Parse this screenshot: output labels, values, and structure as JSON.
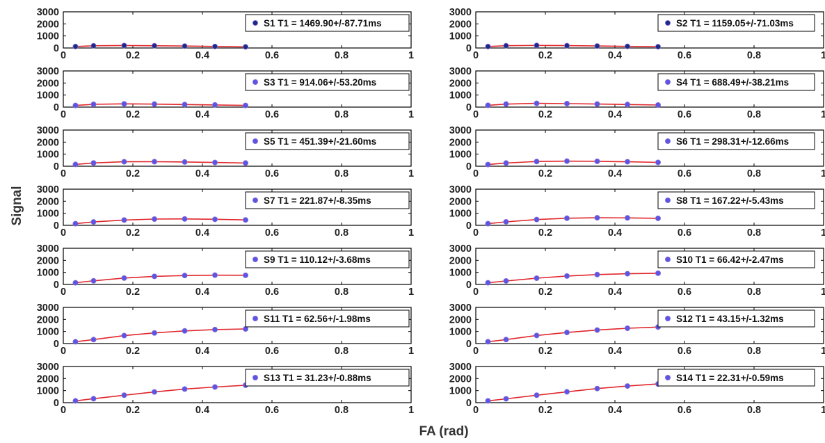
{
  "figure": {
    "xlabel": "FA (rad)",
    "ylabel": "Signal",
    "x_ticks": [
      "0",
      "0.2",
      "0.4",
      "0.6",
      "0.8",
      "1"
    ],
    "y_ticks": [
      "0",
      "1000",
      "2000",
      "3000"
    ]
  },
  "colors": {
    "marker_fill": "#5b55e6",
    "marker_edge": "#8a6fd0",
    "fit_line": "#e0262b",
    "axis": "#000000"
  },
  "chart_data": [
    {
      "type": "scatter",
      "legend": "S1 T1 = 1469.90+/-87.71ms",
      "marker_fill": "#1a2a8a",
      "xlim": [
        0,
        1
      ],
      "ylim": [
        0,
        3000
      ],
      "x": [
        0.035,
        0.087,
        0.175,
        0.262,
        0.349,
        0.436,
        0.524
      ],
      "values": [
        120,
        185,
        205,
        185,
        160,
        125,
        95
      ]
    },
    {
      "type": "scatter",
      "legend": "S2 T1 = 1159.05+/-71.03ms",
      "marker_fill": "#1a2a8a",
      "xlim": [
        0,
        1
      ],
      "ylim": [
        0,
        3000
      ],
      "x": [
        0.035,
        0.087,
        0.175,
        0.262,
        0.349,
        0.436,
        0.524
      ],
      "values": [
        120,
        190,
        215,
        195,
        165,
        135,
        105
      ]
    },
    {
      "type": "scatter",
      "legend": "S3 T1 = 914.06+/-53.20ms",
      "xlim": [
        0,
        1
      ],
      "ylim": [
        0,
        3000
      ],
      "x": [
        0.035,
        0.087,
        0.175,
        0.262,
        0.349,
        0.436,
        0.524
      ],
      "values": [
        140,
        230,
        270,
        250,
        215,
        180,
        140
      ]
    },
    {
      "type": "scatter",
      "legend": "S4 T1 = 688.49+/-38.21ms",
      "xlim": [
        0,
        1
      ],
      "ylim": [
        0,
        3000
      ],
      "x": [
        0.035,
        0.087,
        0.175,
        0.262,
        0.349,
        0.436,
        0.524
      ],
      "values": [
        150,
        250,
        310,
        290,
        255,
        215,
        175
      ]
    },
    {
      "type": "scatter",
      "legend": "S5 T1 = 451.39+/-21.60ms",
      "xlim": [
        0,
        1
      ],
      "ylim": [
        0,
        3000
      ],
      "x": [
        0.035,
        0.087,
        0.175,
        0.262,
        0.349,
        0.436,
        0.524
      ],
      "values": [
        150,
        270,
        370,
        375,
        350,
        310,
        265
      ]
    },
    {
      "type": "scatter",
      "legend": "S6 T1 = 298.31+/-12.66ms",
      "xlim": [
        0,
        1
      ],
      "ylim": [
        0,
        3000
      ],
      "x": [
        0.035,
        0.087,
        0.175,
        0.262,
        0.349,
        0.436,
        0.524
      ],
      "values": [
        140,
        265,
        390,
        420,
        405,
        370,
        320
      ]
    },
    {
      "type": "scatter",
      "legend": "S7 T1 = 221.87+/-8.35ms",
      "xlim": [
        0,
        1
      ],
      "ylim": [
        0,
        3000
      ],
      "x": [
        0.035,
        0.087,
        0.175,
        0.262,
        0.349,
        0.436,
        0.524
      ],
      "values": [
        140,
        280,
        440,
        520,
        530,
        500,
        450
      ]
    },
    {
      "type": "scatter",
      "legend": "S8 T1 = 167.22+/-5.43ms",
      "xlim": [
        0,
        1
      ],
      "ylim": [
        0,
        3000
      ],
      "x": [
        0.035,
        0.087,
        0.175,
        0.262,
        0.349,
        0.436,
        0.524
      ],
      "values": [
        140,
        290,
        480,
        590,
        630,
        620,
        580
      ]
    },
    {
      "type": "scatter",
      "legend": "S9 T1 = 110.12+/-3.68ms",
      "xlim": [
        0,
        1
      ],
      "ylim": [
        0,
        3000
      ],
      "x": [
        0.035,
        0.087,
        0.175,
        0.262,
        0.349,
        0.436,
        0.524
      ],
      "values": [
        140,
        300,
        530,
        670,
        740,
        770,
        760
      ]
    },
    {
      "type": "scatter",
      "legend": "S10 T1 = 66.42+/-2.47ms",
      "xlim": [
        0,
        1
      ],
      "ylim": [
        0,
        3000
      ],
      "x": [
        0.035,
        0.087,
        0.175,
        0.262,
        0.349,
        0.436,
        0.524
      ],
      "values": [
        140,
        290,
        520,
        700,
        820,
        890,
        930
      ]
    },
    {
      "type": "scatter",
      "legend": "S11 T1 = 62.56+/-1.98ms",
      "xlim": [
        0,
        1
      ],
      "ylim": [
        0,
        3000
      ],
      "x": [
        0.035,
        0.087,
        0.175,
        0.262,
        0.349,
        0.436,
        0.524
      ],
      "values": [
        150,
        330,
        660,
        880,
        1050,
        1160,
        1210
      ]
    },
    {
      "type": "scatter",
      "legend": "S12 T1 = 43.15+/-1.32ms",
      "xlim": [
        0,
        1
      ],
      "ylim": [
        0,
        3000
      ],
      "x": [
        0.035,
        0.087,
        0.175,
        0.262,
        0.349,
        0.436,
        0.524
      ],
      "values": [
        150,
        330,
        670,
        920,
        1120,
        1270,
        1370
      ]
    },
    {
      "type": "scatter",
      "legend": "S13 T1 = 31.23+/-0.88ms",
      "xlim": [
        0,
        1
      ],
      "ylim": [
        0,
        3000
      ],
      "x": [
        0.035,
        0.087,
        0.175,
        0.262,
        0.349,
        0.436,
        0.524
      ],
      "values": [
        150,
        330,
        620,
        890,
        1130,
        1300,
        1450
      ]
    },
    {
      "type": "scatter",
      "legend": "S14 T1 = 22.31+/-0.59ms",
      "xlim": [
        0,
        1
      ],
      "ylim": [
        0,
        3000
      ],
      "x": [
        0.035,
        0.087,
        0.175,
        0.262,
        0.349,
        0.436,
        0.524
      ],
      "values": [
        150,
        320,
        620,
        900,
        1170,
        1380,
        1550
      ]
    }
  ]
}
